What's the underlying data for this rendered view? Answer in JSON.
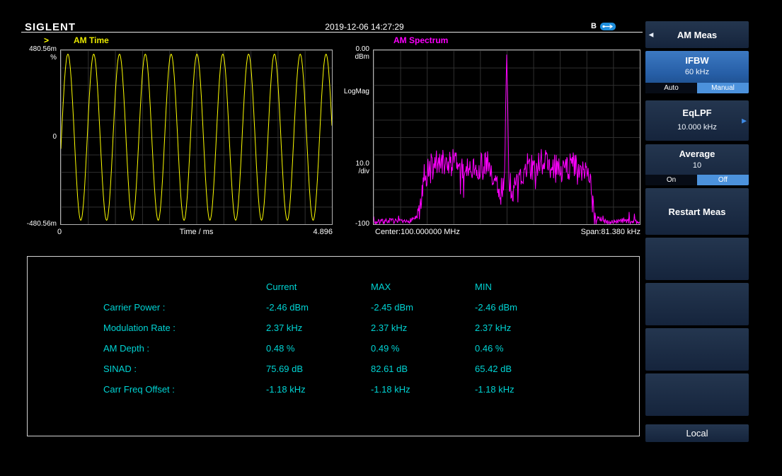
{
  "header": {
    "brand": "SIGLENT",
    "timestamp": "2019-12-06 14:27:29",
    "b_indicator": "B"
  },
  "icons": {
    "back_arrow": "◀",
    "submenu_arrow": "▶"
  },
  "time_chart": {
    "marker": ">",
    "title": "AM Time",
    "y_max": "480.56m",
    "y_unit": "%",
    "y_mid": "0",
    "y_min": "-480.56m",
    "x_min": "0",
    "x_title": "Time / ms",
    "x_max": "4.896"
  },
  "spectrum_chart": {
    "title": "AM Spectrum",
    "y_max": "0.00",
    "y_max_unit": "dBm",
    "scale_type": "LogMag",
    "per_div": "10.0",
    "per_div_unit": "/div",
    "y_min": "-100",
    "x_left": "Center:100.000000 MHz",
    "x_right": "Span:81.380 kHz"
  },
  "chart_data": [
    {
      "id": "am-time",
      "type": "line",
      "kind": "sine",
      "title": "AM Time",
      "ylabel": "%",
      "y_range_labels": [
        "-480.56m",
        "480.56m"
      ],
      "xlabel": "Time / ms",
      "x_range": [
        0,
        4.896
      ],
      "cycles": 10.5,
      "phase": -0.14,
      "amplitude_frac": 0.955,
      "grid_divisions": [
        10,
        10
      ],
      "color": "#ffff00"
    },
    {
      "id": "am-spectrum",
      "type": "line",
      "kind": "spectrum",
      "title": "AM Spectrum",
      "scale": "LogMag",
      "y_range": [
        -100,
        0
      ],
      "y_per_div": 10,
      "center": "100.000000 MHz",
      "span": "81.380 kHz",
      "carrier_peak_dbm": -2.46,
      "grid_divisions": [
        10,
        10
      ],
      "seed": 7,
      "noise_up": 8,
      "noise_down": 14,
      "dip_chance": 0.08,
      "dip_depth": 12,
      "color": "#ff00ff",
      "envelope": [
        [
          0,
          -99
        ],
        [
          0.06,
          -98
        ],
        [
          0.12,
          -99
        ],
        [
          0.16,
          -96
        ],
        [
          0.175,
          -86
        ],
        [
          0.19,
          -70
        ],
        [
          0.23,
          -64
        ],
        [
          0.3,
          -62
        ],
        [
          0.37,
          -64
        ],
        [
          0.43,
          -65
        ],
        [
          0.46,
          -72
        ],
        [
          0.478,
          -82
        ],
        [
          0.49,
          -72
        ],
        [
          0.495,
          -40
        ],
        [
          0.5,
          -2.5
        ],
        [
          0.505,
          -40
        ],
        [
          0.51,
          -72
        ],
        [
          0.522,
          -82
        ],
        [
          0.54,
          -72
        ],
        [
          0.57,
          -65
        ],
        [
          0.63,
          -62
        ],
        [
          0.7,
          -63
        ],
        [
          0.77,
          -64
        ],
        [
          0.81,
          -70
        ],
        [
          0.825,
          -86
        ],
        [
          0.84,
          -96
        ],
        [
          0.88,
          -99
        ],
        [
          0.94,
          -98
        ],
        [
          1,
          -99
        ]
      ]
    }
  ],
  "results": {
    "columns": [
      "Current",
      "MAX",
      "MIN"
    ],
    "rows": [
      {
        "label": "Carrier Power :",
        "current": "-2.46 dBm",
        "max": "-2.45 dBm",
        "min": "-2.46 dBm"
      },
      {
        "label": "Modulation Rate :",
        "current": "2.37 kHz",
        "max": "2.37 kHz",
        "min": "2.37 kHz"
      },
      {
        "label": "AM Depth :",
        "current": "0.48 %",
        "max": "0.49 %",
        "min": "0.46 %"
      },
      {
        "label": "SINAD :",
        "current": "75.69 dB",
        "max": "82.61 dB",
        "min": "65.42 dB"
      },
      {
        "label": "Carr Freq Offset :",
        "current": "-1.18 kHz",
        "max": "-1.18 kHz",
        "min": "-1.18 kHz"
      }
    ]
  },
  "menu": {
    "title": "AM Meas",
    "ifbw": {
      "label": "IFBW",
      "value": "60 kHz",
      "options": [
        "Auto",
        "Manual"
      ],
      "selected_option": "Manual"
    },
    "eqlpf": {
      "label": "EqLPF",
      "value": "10.000 kHz"
    },
    "average": {
      "label": "Average",
      "value": "10",
      "options": [
        "On",
        "Off"
      ],
      "selected_option": "Off"
    },
    "restart": {
      "label": "Restart Meas"
    },
    "local": "Local"
  },
  "colors": {
    "trace_time": "#ffff00",
    "trace_spectrum": "#ff00ff",
    "results_text": "#00d4d4",
    "softkey_selected": "#2e6ab2",
    "toggle_active": "#4c92dc"
  }
}
